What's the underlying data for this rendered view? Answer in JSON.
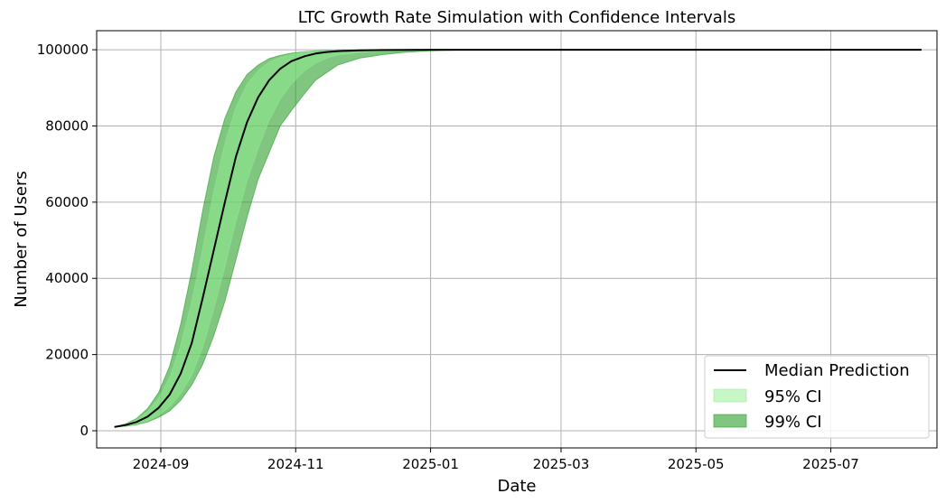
{
  "chart_data": {
    "type": "line",
    "title": "LTC Growth Rate Simulation with Confidence Intervals",
    "xlabel": "Date",
    "ylabel": "Number of Users",
    "x_axis_type": "date",
    "xlim": [
      "2024-08-03",
      "2025-08-18"
    ],
    "ylim": [
      -4500,
      105000
    ],
    "x_ticks": [
      {
        "date": "2024-09-01",
        "label": "2024-09"
      },
      {
        "date": "2024-11-01",
        "label": "2024-11"
      },
      {
        "date": "2025-01-01",
        "label": "2025-01"
      },
      {
        "date": "2025-03-01",
        "label": "2025-03"
      },
      {
        "date": "2025-05-01",
        "label": "2025-05"
      },
      {
        "date": "2025-07-01",
        "label": "2025-07"
      }
    ],
    "y_ticks": [
      0,
      20000,
      40000,
      60000,
      80000,
      100000
    ],
    "y_tick_labels": [
      "0",
      "20000",
      "40000",
      "60000",
      "80000",
      "100000"
    ],
    "grid": true,
    "legend_position": "bottom-right",
    "colors": {
      "median": "#000000",
      "ci95": "#90ee90",
      "ci99": "#2ca02c"
    },
    "series": [
      {
        "name": "Median Prediction",
        "kind": "line",
        "x": [
          "2024-08-11",
          "2024-08-16",
          "2024-08-21",
          "2024-08-26",
          "2024-08-31",
          "2024-09-05",
          "2024-09-10",
          "2024-09-15",
          "2024-09-20",
          "2024-09-25",
          "2024-09-30",
          "2024-10-05",
          "2024-10-10",
          "2024-10-15",
          "2024-10-20",
          "2024-10-25",
          "2024-10-30",
          "2024-11-05",
          "2024-11-10",
          "2024-11-15",
          "2024-11-20",
          "2024-11-30",
          "2024-12-10",
          "2024-12-20",
          "2024-12-31",
          "2025-01-15",
          "2025-03-01",
          "2025-05-01",
          "2025-07-01",
          "2025-08-11"
        ],
        "y": [
          1000,
          1500,
          2300,
          3700,
          6000,
          9500,
          15000,
          23000,
          35000,
          47500,
          60000,
          72000,
          81000,
          87500,
          92000,
          95000,
          97000,
          98300,
          99000,
          99400,
          99650,
          99850,
          99930,
          99970,
          99990,
          100000,
          100000,
          100000,
          100000,
          100000
        ]
      },
      {
        "name": "95% CI",
        "kind": "band",
        "x": [
          "2024-08-11",
          "2024-08-16",
          "2024-08-21",
          "2024-08-26",
          "2024-08-31",
          "2024-09-05",
          "2024-09-10",
          "2024-09-15",
          "2024-09-20",
          "2024-09-25",
          "2024-09-30",
          "2024-10-05",
          "2024-10-10",
          "2024-10-15",
          "2024-10-20",
          "2024-10-25",
          "2024-10-30",
          "2024-11-05",
          "2024-11-10",
          "2024-11-15",
          "2024-11-20",
          "2024-11-30",
          "2024-12-10",
          "2024-12-20",
          "2024-12-31",
          "2025-01-15",
          "2025-03-01",
          "2025-05-01",
          "2025-07-01",
          "2025-08-11"
        ],
        "lower": [
          1000,
          1300,
          1800,
          2600,
          4100,
          6300,
          9800,
          14500,
          22000,
          32000,
          43000,
          55000,
          65500,
          74000,
          81500,
          87000,
          91000,
          94500,
          96500,
          97800,
          98600,
          99300,
          99650,
          99850,
          99950,
          99990,
          100000,
          100000,
          100000,
          100000
        ],
        "upper": [
          1000,
          1700,
          2900,
          5000,
          8500,
          14000,
          22500,
          34000,
          48000,
          63000,
          75500,
          85000,
          91000,
          94500,
          96800,
          98000,
          98800,
          99350,
          99650,
          99800,
          99900,
          99960,
          99985,
          99995,
          100000,
          100000,
          100000,
          100000,
          100000,
          100000
        ]
      },
      {
        "name": "99% CI",
        "kind": "band",
        "x": [
          "2024-08-11",
          "2024-08-16",
          "2024-08-21",
          "2024-08-26",
          "2024-08-31",
          "2024-09-05",
          "2024-09-10",
          "2024-09-15",
          "2024-09-20",
          "2024-09-25",
          "2024-09-30",
          "2024-10-05",
          "2024-10-10",
          "2024-10-15",
          "2024-10-20",
          "2024-10-25",
          "2024-10-30",
          "2024-11-05",
          "2024-11-10",
          "2024-11-15",
          "2024-11-20",
          "2024-11-30",
          "2024-12-10",
          "2024-12-20",
          "2024-12-31",
          "2025-01-15",
          "2025-03-01",
          "2025-05-01",
          "2025-07-01",
          "2025-08-11"
        ],
        "lower": [
          1000,
          1200,
          1600,
          2300,
          3500,
          5200,
          8000,
          12000,
          17500,
          25000,
          34000,
          45000,
          56000,
          66000,
          73000,
          80000,
          84000,
          88500,
          92000,
          94000,
          96000,
          97800,
          98700,
          99300,
          99700,
          99950,
          100000,
          100000,
          100000,
          100000
        ],
        "upper": [
          1000,
          1800,
          3200,
          5800,
          10000,
          17000,
          28000,
          42000,
          58000,
          72000,
          82000,
          89000,
          93500,
          96000,
          97700,
          98500,
          99100,
          99500,
          99700,
          99850,
          99920,
          99970,
          99990,
          100000,
          100000,
          100000,
          100000,
          100000,
          100000,
          100000
        ]
      }
    ]
  }
}
